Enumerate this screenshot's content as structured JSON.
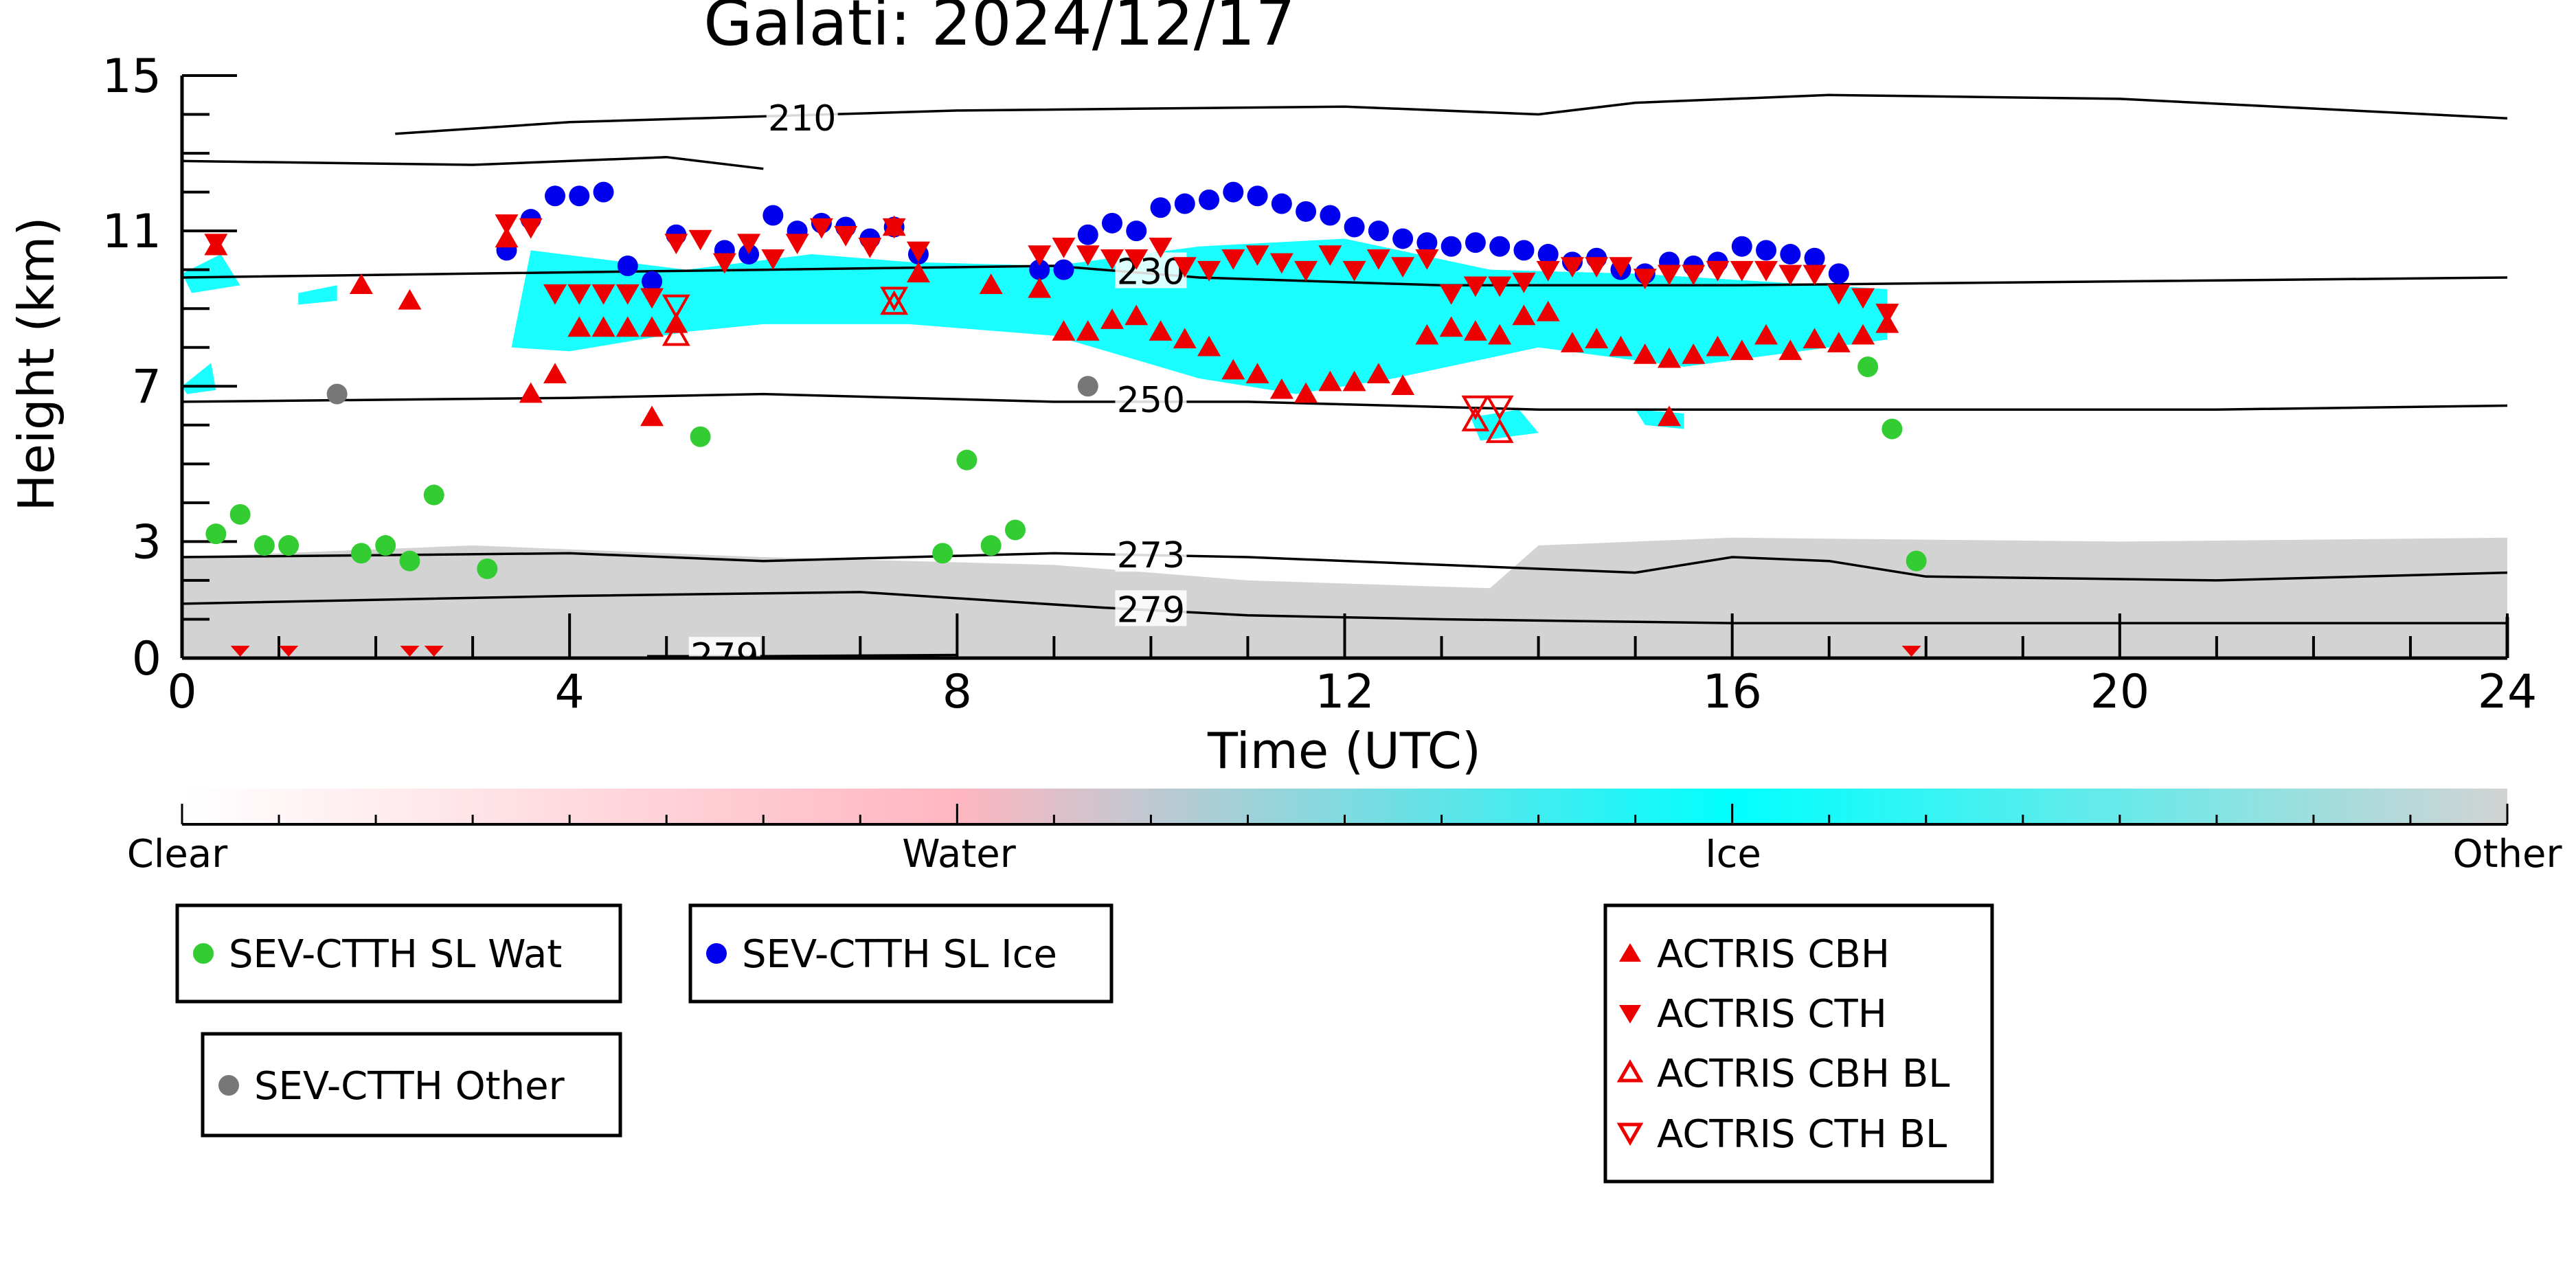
{
  "chart_data": {
    "type": "scatter",
    "title": "Galati: 2024/12/17",
    "xlabel": "Time (UTC)",
    "ylabel": "Height (km)",
    "xlim": [
      0,
      24
    ],
    "ylim": [
      0,
      15
    ],
    "xticks": [
      0,
      4,
      8,
      12,
      16,
      20,
      24
    ],
    "yticks": [
      0,
      3,
      7,
      11,
      15
    ],
    "colorbar": {
      "labels": [
        "Clear",
        "Water",
        "Ice",
        "Other"
      ],
      "colors": [
        "#ffffff",
        "#ffb6c1",
        "#00ffff",
        "#d3d3d3"
      ]
    },
    "contours": [
      {
        "label": "210",
        "points": [
          [
            2.2,
            13.5
          ],
          [
            4,
            13.8
          ],
          [
            8,
            14.1
          ],
          [
            12,
            14.2
          ],
          [
            14,
            14.0
          ],
          [
            15,
            14.3
          ],
          [
            17,
            14.5
          ],
          [
            20,
            14.4
          ],
          [
            24,
            13.9
          ]
        ]
      },
      {
        "label": "210",
        "points": [
          [
            0,
            12.8
          ],
          [
            3,
            12.7
          ],
          [
            5,
            12.9
          ],
          [
            6,
            12.6
          ]
        ]
      },
      {
        "label": "230",
        "points": [
          [
            0,
            9.8
          ],
          [
            3,
            9.9
          ],
          [
            6,
            10.0
          ],
          [
            9,
            10.1
          ],
          [
            10.5,
            9.8
          ],
          [
            13,
            9.6
          ],
          [
            16,
            9.6
          ],
          [
            20,
            9.7
          ],
          [
            24,
            9.8
          ]
        ]
      },
      {
        "label": "250",
        "points": [
          [
            0,
            6.6
          ],
          [
            4,
            6.7
          ],
          [
            6,
            6.8
          ],
          [
            9,
            6.6
          ],
          [
            11,
            6.6
          ],
          [
            14,
            6.4
          ],
          [
            17,
            6.4
          ],
          [
            21,
            6.4
          ],
          [
            24,
            6.5
          ]
        ]
      },
      {
        "label": "273",
        "points": [
          [
            0,
            2.6
          ],
          [
            4,
            2.7
          ],
          [
            6,
            2.5
          ],
          [
            9,
            2.7
          ],
          [
            11,
            2.6
          ],
          [
            13,
            2.4
          ],
          [
            15,
            2.2
          ],
          [
            16,
            2.6
          ],
          [
            17,
            2.5
          ],
          [
            18,
            2.1
          ],
          [
            21,
            2.0
          ],
          [
            24,
            2.2
          ]
        ]
      },
      {
        "label": "279",
        "points": [
          [
            0,
            1.4
          ],
          [
            4,
            1.6
          ],
          [
            7,
            1.7
          ],
          [
            9.5,
            1.3
          ],
          [
            11,
            1.1
          ],
          [
            13,
            1.0
          ],
          [
            16,
            0.9
          ],
          [
            20,
            0.9
          ],
          [
            24,
            0.9
          ]
        ]
      },
      {
        "label": "279",
        "points": [
          [
            4.8,
            0.05
          ],
          [
            6,
            0.05
          ],
          [
            8,
            0.08
          ]
        ]
      }
    ],
    "series": [
      {
        "name": "SEV-CTTH SL Wat",
        "marker": "circle",
        "color": "#33cc33",
        "x": [
          0.35,
          0.6,
          0.85,
          1.1,
          1.85,
          2.1,
          2.35,
          2.6,
          3.15,
          5.35,
          7.85,
          8.1,
          8.35,
          8.6,
          17.4,
          17.65,
          17.9
        ],
        "y": [
          3.2,
          3.7,
          2.9,
          2.9,
          2.7,
          2.9,
          2.5,
          4.2,
          2.3,
          5.7,
          2.7,
          5.1,
          2.9,
          3.3,
          7.5,
          5.9,
          2.5
        ]
      },
      {
        "name": "SEV-CTTH SL Ice",
        "marker": "circle",
        "color": "#0000ee",
        "x": [
          3.35,
          3.6,
          3.85,
          4.1,
          4.35,
          4.6,
          4.85,
          5.1,
          5.6,
          5.85,
          6.1,
          6.35,
          6.6,
          6.85,
          7.1,
          7.35,
          7.6,
          8.85,
          9.1,
          9.35,
          9.6,
          9.85,
          10.1,
          10.35,
          10.6,
          10.85,
          11.1,
          11.35,
          11.6,
          11.85,
          12.1,
          12.35,
          12.6,
          12.85,
          13.1,
          13.35,
          13.6,
          13.85,
          14.1,
          14.35,
          14.6,
          14.85,
          15.1,
          15.35,
          15.6,
          15.85,
          16.1,
          16.35,
          16.6,
          16.85,
          17.1
        ],
        "y": [
          10.5,
          11.3,
          11.9,
          11.9,
          12.0,
          10.1,
          9.7,
          10.9,
          10.5,
          10.4,
          11.4,
          11.0,
          11.2,
          11.1,
          10.8,
          11.1,
          10.4,
          10.0,
          10.0,
          10.9,
          11.2,
          11.0,
          11.6,
          11.7,
          11.8,
          12.0,
          11.9,
          11.7,
          11.5,
          11.4,
          11.1,
          11.0,
          10.8,
          10.7,
          10.6,
          10.7,
          10.6,
          10.5,
          10.4,
          10.2,
          10.3,
          10.0,
          9.9,
          10.2,
          10.1,
          10.2,
          10.6,
          10.5,
          10.4,
          10.3,
          9.9
        ]
      },
      {
        "name": "SEV-CTTH Other",
        "marker": "circle",
        "color": "#777777",
        "x": [
          1.6,
          9.35
        ],
        "y": [
          6.8,
          7.0
        ]
      },
      {
        "name": "ACTRIS CBH",
        "marker": "triangle-up",
        "color": "#ee0000",
        "filled": true,
        "x": [
          3.6,
          3.85,
          4.1,
          4.35,
          4.6,
          4.85,
          5.1,
          8.35,
          9.1,
          9.35,
          9.6,
          9.85,
          10.1,
          10.35,
          10.6,
          10.85,
          11.1,
          11.35,
          11.6,
          11.85,
          12.1,
          12.35,
          12.6,
          12.85,
          13.1,
          13.35,
          13.6,
          13.85,
          14.1,
          14.35,
          14.6,
          14.85,
          15.1,
          15.35,
          15.6,
          15.85,
          16.1,
          16.35,
          16.6,
          16.85,
          17.1,
          17.35,
          17.6,
          4.85,
          7.6
        ],
        "y": [
          6.8,
          7.3,
          8.5,
          8.5,
          8.5,
          8.5,
          8.6,
          9.6,
          8.4,
          8.4,
          8.7,
          8.8,
          8.4,
          8.2,
          8.0,
          7.4,
          7.3,
          6.9,
          6.8,
          7.1,
          7.1,
          7.3,
          7.0,
          8.3,
          8.5,
          8.4,
          8.3,
          8.8,
          8.9,
          8.1,
          8.2,
          8.0,
          7.8,
          7.7,
          7.8,
          8.0,
          7.9,
          8.3,
          7.9,
          8.2,
          8.1,
          8.3,
          8.6,
          6.2,
          9.9
        ],
        "x2": [
          0.35,
          1.85,
          2.35,
          3.35,
          7.35,
          8.85,
          15.35
        ],
        "y2": [
          10.6,
          9.6,
          9.2,
          10.8,
          11.1,
          9.5,
          6.2
        ]
      },
      {
        "name": "ACTRIS CTH",
        "marker": "triangle-down",
        "color": "#ee0000",
        "filled": true,
        "x": [
          0.35,
          3.35,
          3.6,
          3.85,
          4.1,
          4.35,
          4.6,
          4.85,
          5.1,
          5.35,
          5.6,
          5.85,
          6.1,
          6.35,
          6.6,
          6.85,
          7.1,
          7.35,
          7.6,
          8.85,
          9.1,
          9.35,
          9.6,
          9.85,
          10.1,
          10.35,
          10.6,
          10.85,
          11.1,
          11.35,
          11.6,
          11.85,
          12.1,
          12.35,
          12.6,
          12.85,
          13.1,
          13.35,
          13.6,
          13.85,
          14.1,
          14.35,
          14.6,
          14.85,
          15.1,
          15.35,
          15.6,
          15.85,
          16.1,
          16.35,
          16.6,
          16.85,
          17.1,
          17.35,
          17.6
        ],
        "y": [
          10.7,
          11.2,
          11.1,
          9.4,
          9.4,
          9.4,
          9.4,
          9.3,
          10.7,
          10.8,
          10.2,
          10.7,
          10.3,
          10.7,
          11.1,
          10.9,
          10.6,
          11.1,
          10.5,
          10.4,
          10.6,
          10.4,
          10.3,
          10.3,
          10.6,
          10.1,
          10.0,
          10.3,
          10.4,
          10.2,
          10.0,
          10.4,
          10.0,
          10.3,
          10.1,
          10.3,
          9.4,
          9.6,
          9.6,
          9.7,
          10.0,
          10.1,
          10.1,
          10.1,
          9.8,
          9.9,
          9.9,
          10.0,
          10.0,
          10.0,
          9.9,
          9.9,
          9.4,
          9.3,
          8.9
        ]
      },
      {
        "name": "ACTRIS CBH BL",
        "marker": "triangle-up",
        "color": "#ee0000",
        "filled": false,
        "x": [
          5.1,
          7.35,
          13.35,
          13.6
        ],
        "y": [
          8.3,
          9.1,
          6.1,
          5.8
        ]
      },
      {
        "name": "ACTRIS CTH BL",
        "marker": "triangle-down",
        "color": "#ee0000",
        "filled": false,
        "x": [
          5.1,
          7.35,
          13.35,
          13.6
        ],
        "y": [
          9.1,
          9.3,
          6.5,
          6.5
        ]
      }
    ],
    "legends": [
      {
        "entries": [
          "SEV-CTTH SL Wat"
        ]
      },
      {
        "entries": [
          "SEV-CTTH SL Ice"
        ]
      },
      {
        "entries": [
          "SEV-CTTH Other"
        ]
      },
      {
        "entries": [
          "ACTRIS CBH",
          "ACTRIS CTH",
          "ACTRIS CBH BL",
          "ACTRIS CTH BL"
        ]
      }
    ],
    "grid": false
  }
}
